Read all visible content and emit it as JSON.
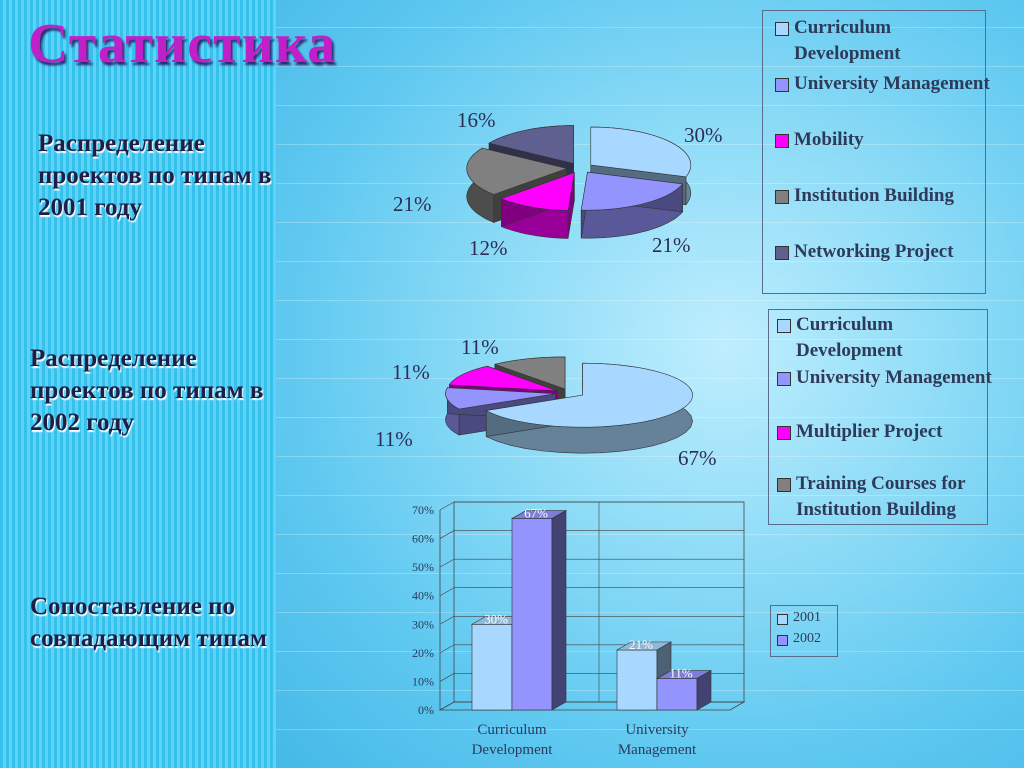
{
  "title": "Статистика",
  "sections": [
    {
      "text": "Распределение проектов по типам в 2001 году"
    },
    {
      "text": "Распределение проектов по типам в 2002 году"
    },
    {
      "text": "Сопоставление по совпадающим типам"
    }
  ],
  "chart_data": [
    {
      "type": "pie",
      "labels": [
        "Curriculum Development",
        "University Management",
        "Mobility",
        "Institution Building",
        "Networking Project"
      ],
      "values": [
        30,
        21,
        12,
        21,
        16
      ],
      "value_labels": [
        "30%",
        "21%",
        "12%",
        "21%",
        "16%"
      ],
      "colors": [
        "#a8d8ff",
        "#9494ff",
        "#ff00ff",
        "#808080",
        "#606090"
      ],
      "legend_position": "right"
    },
    {
      "type": "pie",
      "labels": [
        "Curriculum Development",
        "University Management",
        "Multiplier Project",
        "Training Courses for Institution Building"
      ],
      "values": [
        67,
        11,
        11,
        11
      ],
      "value_labels": [
        "67%",
        "11%",
        "11%",
        "11%"
      ],
      "colors": [
        "#a8d8ff",
        "#9494ff",
        "#ff00ff",
        "#808080"
      ],
      "legend_position": "right"
    },
    {
      "type": "bar",
      "categories": [
        "Curriculum Development",
        "University Management"
      ],
      "series": [
        {
          "name": "2001",
          "values": [
            30,
            21
          ],
          "value_labels": [
            "30%",
            "21%"
          ],
          "color": "#a8d8ff"
        },
        {
          "name": "2002",
          "values": [
            67,
            11
          ],
          "value_labels": [
            "67%",
            "11%"
          ],
          "color": "#9494ff"
        }
      ],
      "yticks": [
        "0%",
        "10%",
        "20%",
        "30%",
        "40%",
        "50%",
        "60%",
        "70%"
      ],
      "ylim": [
        0,
        70
      ],
      "grid": true,
      "legend_position": "right"
    }
  ]
}
